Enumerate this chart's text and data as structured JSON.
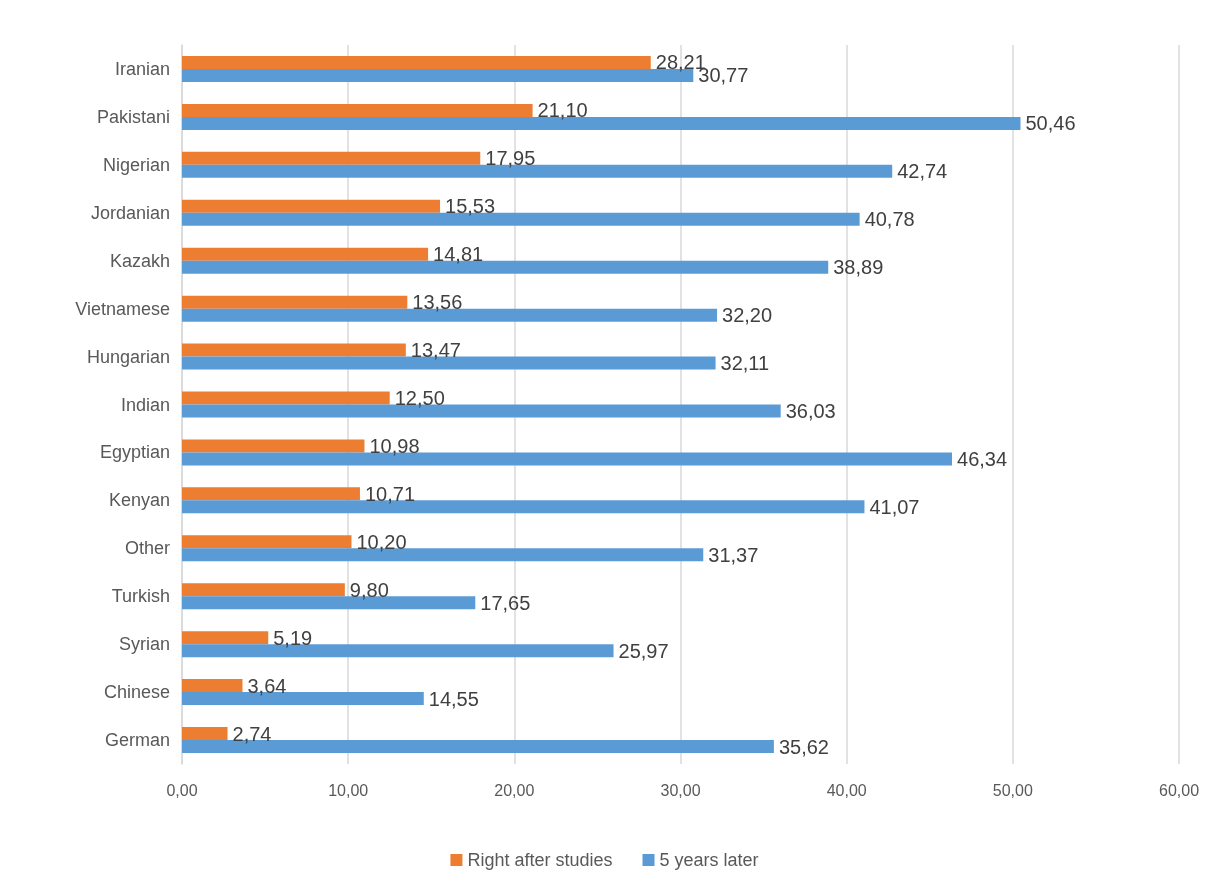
{
  "chart_data": {
    "type": "bar",
    "orientation": "horizontal",
    "categories": [
      "Iranian",
      "Pakistani",
      "Nigerian",
      "Jordanian",
      "Kazakh",
      "Vietnamese",
      "Hungarian",
      "Indian",
      "Egyptian",
      "Kenyan",
      "Other",
      "Turkish",
      "Syrian",
      "Chinese",
      "German"
    ],
    "series": [
      {
        "name": "Right after studies",
        "color": "#ed7d31",
        "values": [
          28.21,
          21.1,
          17.95,
          15.53,
          14.81,
          13.56,
          13.47,
          12.5,
          10.98,
          10.71,
          10.2,
          9.8,
          5.19,
          3.64,
          2.74
        ],
        "value_labels": [
          "28,21",
          "21,10",
          "17,95",
          "15,53",
          "14,81",
          "13,56",
          "13,47",
          "12,50",
          "10,98",
          "10,71",
          "10,20",
          "9,80",
          "5,19",
          "3,64",
          "2,74"
        ]
      },
      {
        "name": "5 years later",
        "color": "#5b9bd5",
        "values": [
          30.77,
          50.46,
          42.74,
          40.78,
          38.89,
          32.2,
          32.11,
          36.03,
          46.34,
          41.07,
          31.37,
          17.65,
          25.97,
          14.55,
          35.62
        ],
        "value_labels": [
          "30,77",
          "50,46",
          "42,74",
          "40,78",
          "38,89",
          "32,20",
          "32,11",
          "36,03",
          "46,34",
          "41,07",
          "31,37",
          "17,65",
          "25,97",
          "14,55",
          "35,62"
        ]
      }
    ],
    "xlim": [
      0,
      60
    ],
    "xticks": [
      {
        "value": 0,
        "label": "0,00"
      },
      {
        "value": 10,
        "label": "10,00"
      },
      {
        "value": 20,
        "label": "20,00"
      },
      {
        "value": 30,
        "label": "30,00"
      },
      {
        "value": 40,
        "label": "40,00"
      },
      {
        "value": 50,
        "label": "50,00"
      },
      {
        "value": 60,
        "label": "60,00"
      }
    ],
    "grid": "x",
    "legend": "bottom"
  }
}
